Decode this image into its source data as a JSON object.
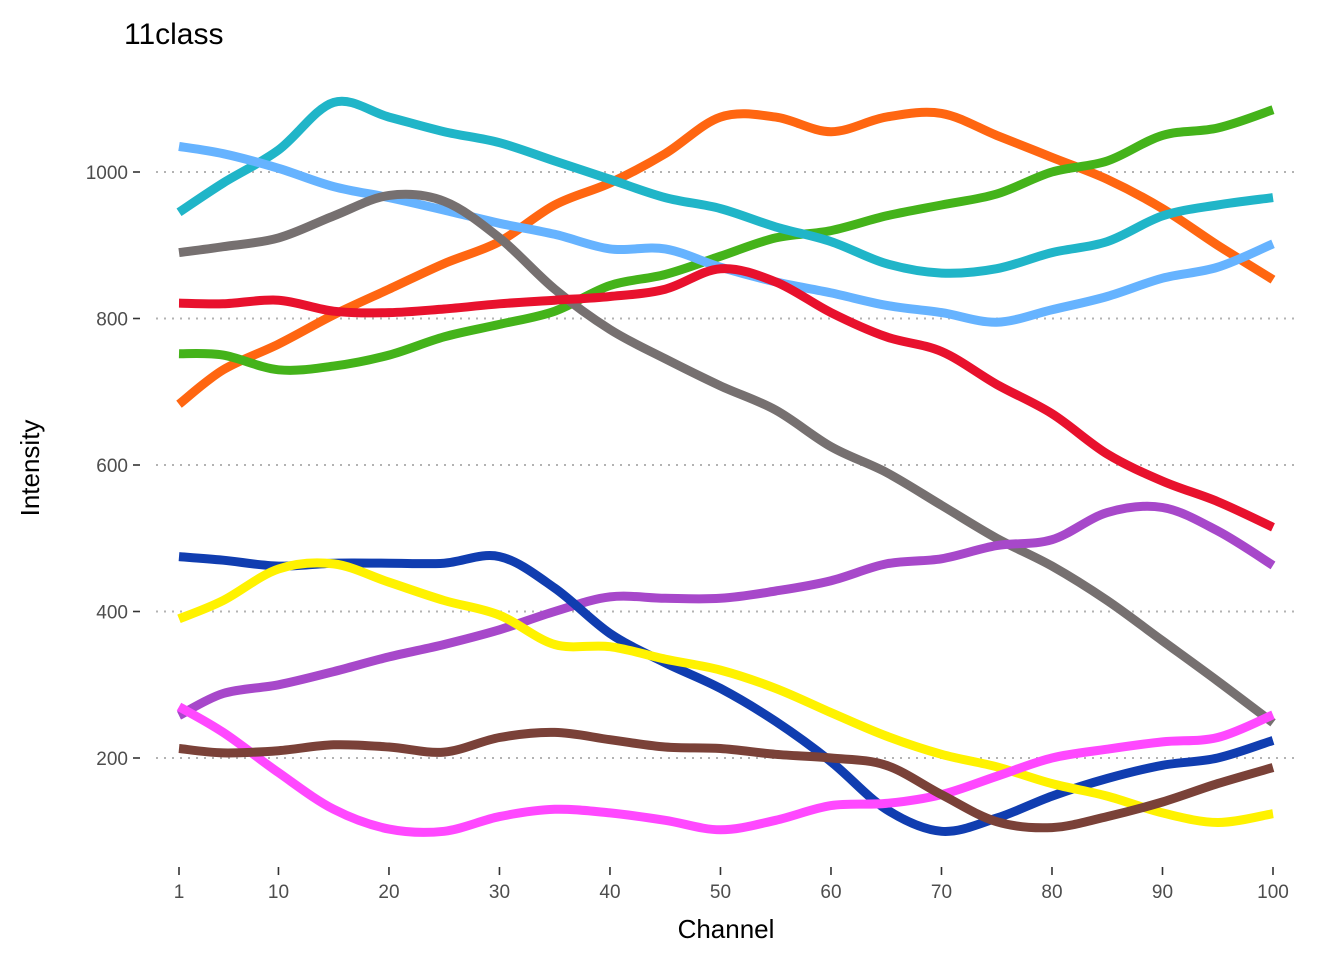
{
  "chart_data": {
    "type": "line",
    "title": "11class",
    "xlabel": "Channel",
    "ylabel": "Intensity",
    "xlim": [
      1,
      100
    ],
    "ylim": [
      50,
      1100
    ],
    "x": [
      1,
      5,
      10,
      15,
      20,
      25,
      30,
      35,
      40,
      45,
      50,
      55,
      60,
      65,
      70,
      75,
      80,
      85,
      90,
      95,
      100
    ],
    "x_ticks": [
      1,
      10,
      20,
      30,
      40,
      50,
      60,
      70,
      80,
      90,
      100
    ],
    "y_ticks": [
      200,
      400,
      600,
      800,
      1000
    ],
    "grid": "horizontal dotted",
    "legend": "none",
    "series": [
      {
        "color": "#FF6611",
        "values": [
          683,
          730,
          765,
          805,
          840,
          875,
          905,
          955,
          985,
          1025,
          1075,
          1075,
          1055,
          1075,
          1080,
          1050,
          1020,
          990,
          950,
          900,
          853
        ]
      },
      {
        "color": "#44B31A",
        "values": [
          752,
          750,
          730,
          735,
          750,
          775,
          792,
          810,
          845,
          860,
          885,
          910,
          920,
          940,
          955,
          970,
          1000,
          1015,
          1050,
          1060,
          1085
        ]
      },
      {
        "color": "#20B5C8",
        "values": [
          945,
          985,
          1030,
          1095,
          1075,
          1055,
          1040,
          1015,
          990,
          965,
          950,
          925,
          905,
          875,
          862,
          868,
          890,
          905,
          940,
          955,
          965
        ]
      },
      {
        "color": "#66B3FF",
        "values": [
          1035,
          1025,
          1005,
          980,
          965,
          948,
          930,
          915,
          895,
          895,
          870,
          850,
          835,
          818,
          808,
          795,
          812,
          830,
          855,
          870,
          902
        ]
      },
      {
        "color": "#767070",
        "values": [
          890,
          898,
          910,
          940,
          968,
          960,
          910,
          840,
          785,
          745,
          708,
          675,
          625,
          590,
          545,
          500,
          462,
          415,
          360,
          305,
          248
        ]
      },
      {
        "color": "#E8112D",
        "values": [
          821,
          820,
          825,
          810,
          808,
          813,
          820,
          825,
          830,
          840,
          868,
          850,
          808,
          775,
          755,
          710,
          670,
          615,
          578,
          550,
          515
        ]
      },
      {
        "color": "#A748CA",
        "values": [
          258,
          288,
          300,
          318,
          338,
          355,
          375,
          400,
          420,
          418,
          418,
          428,
          442,
          465,
          472,
          490,
          498,
          535,
          542,
          510,
          463
        ]
      },
      {
        "color": "#103DB0",
        "values": [
          475,
          470,
          462,
          466,
          466,
          466,
          475,
          432,
          370,
          330,
          295,
          250,
          195,
          130,
          100,
          118,
          148,
          172,
          190,
          200,
          224
        ]
      },
      {
        "color": "#FFF200",
        "values": [
          390,
          415,
          458,
          465,
          440,
          415,
          395,
          355,
          352,
          335,
          320,
          295,
          262,
          230,
          205,
          188,
          165,
          148,
          125,
          112,
          124
        ]
      },
      {
        "color": "#FF48FF",
        "values": [
          270,
          235,
          180,
          130,
          103,
          100,
          120,
          130,
          125,
          115,
          102,
          115,
          135,
          138,
          150,
          175,
          200,
          212,
          222,
          228,
          259
        ]
      },
      {
        "color": "#7A4138",
        "values": [
          213,
          207,
          210,
          218,
          215,
          208,
          228,
          235,
          225,
          215,
          213,
          205,
          200,
          190,
          150,
          113,
          105,
          120,
          140,
          165,
          187
        ]
      }
    ]
  }
}
